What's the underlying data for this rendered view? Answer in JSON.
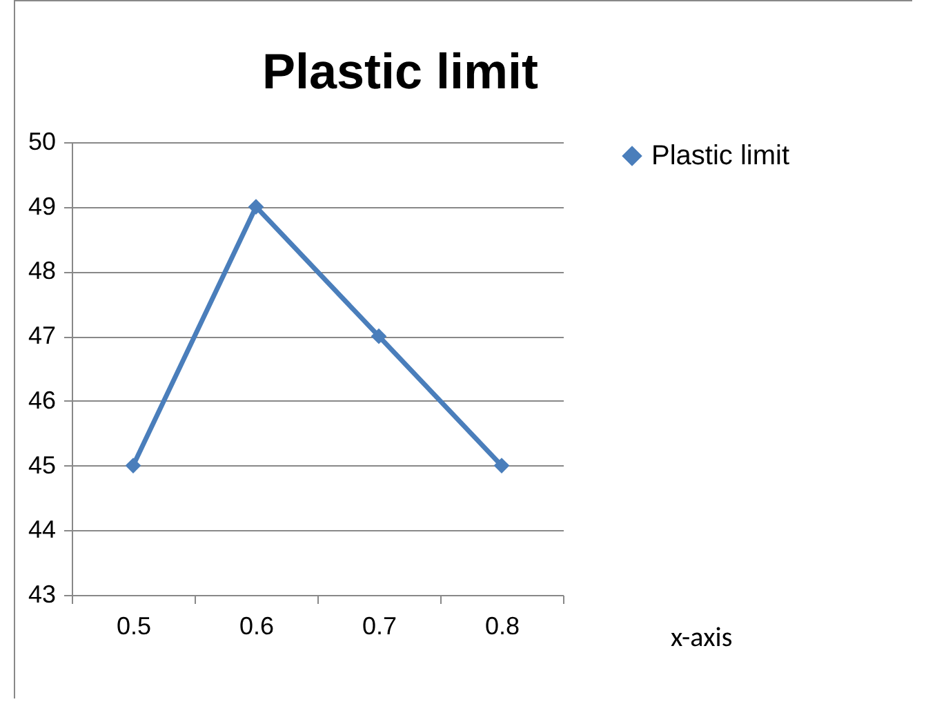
{
  "chart_data": {
    "type": "line",
    "title": "Plastic limit",
    "categories": [
      "0.5",
      "0.6",
      "0.7",
      "0.8"
    ],
    "series": [
      {
        "name": "Plastic limit",
        "color": "#4a7ebb",
        "values": [
          45,
          49,
          47,
          45
        ]
      }
    ],
    "ylim": [
      43,
      50
    ],
    "yticks": [
      43,
      44,
      45,
      46,
      47,
      48,
      49,
      50
    ],
    "grid": "y",
    "legend": "right",
    "marker": "diamond",
    "line_style": "solid",
    "annotations": [
      "x-axis"
    ]
  }
}
